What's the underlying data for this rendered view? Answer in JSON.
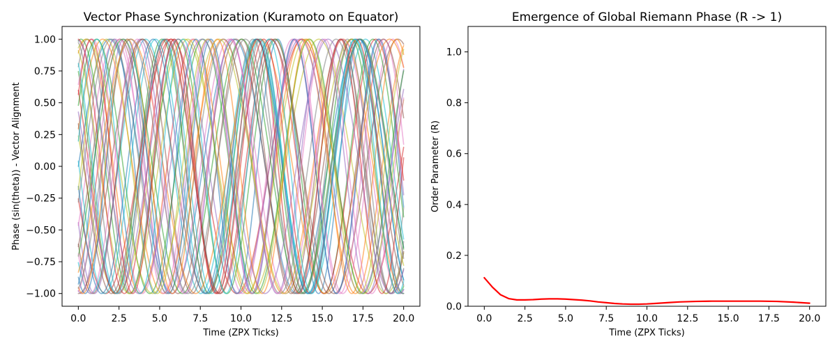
{
  "chart_data": [
    {
      "type": "line",
      "title": "Vector Phase Synchronization (Kuramoto on Equator)",
      "xlabel": "Time (ZPX Ticks)",
      "ylabel": "Phase (sin(theta)) - Vector Alignment",
      "xlim": [
        -1.0,
        21.0
      ],
      "ylim": [
        -1.1,
        1.1
      ],
      "xticks": [
        0.0,
        2.5,
        5.0,
        7.5,
        10.0,
        12.5,
        15.0,
        17.5,
        20.0
      ],
      "xtick_labels": [
        "0.0",
        "2.5",
        "5.0",
        "7.5",
        "10.0",
        "12.5",
        "15.0",
        "17.5",
        "20.0"
      ],
      "yticks": [
        -1.0,
        -0.75,
        -0.5,
        -0.25,
        0.0,
        0.25,
        0.5,
        0.75,
        1.0
      ],
      "ytick_labels": [
        "−1.00",
        "−0.75",
        "−0.50",
        "−0.25",
        "0.00",
        "0.25",
        "0.50",
        "0.75",
        "1.00"
      ],
      "grid": false,
      "legend": "none",
      "series_rule": "y = sin(omega * t + phase)",
      "x_range": [
        0.0,
        20.0
      ],
      "series": [
        {
          "omega": 0.82,
          "phase": 0.0,
          "color": "#1f77b4"
        },
        {
          "omega": 0.95,
          "phase": 1.1,
          "color": "#ff7f0e"
        },
        {
          "omega": 1.08,
          "phase": 2.3,
          "color": "#2ca02c"
        },
        {
          "omega": 0.78,
          "phase": 3.4,
          "color": "#d62728"
        },
        {
          "omega": 1.2,
          "phase": 4.5,
          "color": "#9467bd"
        },
        {
          "omega": 0.88,
          "phase": 5.6,
          "color": "#8c564b"
        },
        {
          "omega": 1.02,
          "phase": 0.7,
          "color": "#e377c2"
        },
        {
          "omega": 1.15,
          "phase": 1.8,
          "color": "#7f7f7f"
        },
        {
          "omega": 0.76,
          "phase": 2.9,
          "color": "#bcbd22"
        },
        {
          "omega": 0.93,
          "phase": 4.0,
          "color": "#17becf"
        },
        {
          "omega": 1.25,
          "phase": 5.1,
          "color": "#1f77b4"
        },
        {
          "omega": 0.85,
          "phase": 0.3,
          "color": "#ff7f0e"
        },
        {
          "omega": 1.05,
          "phase": 1.4,
          "color": "#2ca02c"
        },
        {
          "omega": 0.98,
          "phase": 2.5,
          "color": "#d62728"
        },
        {
          "omega": 1.12,
          "phase": 3.6,
          "color": "#9467bd"
        },
        {
          "omega": 0.8,
          "phase": 4.7,
          "color": "#8c564b"
        },
        {
          "omega": 0.9,
          "phase": 5.8,
          "color": "#e377c2"
        },
        {
          "omega": 1.18,
          "phase": 0.9,
          "color": "#7f7f7f"
        },
        {
          "omega": 0.87,
          "phase": 2.0,
          "color": "#bcbd22"
        },
        {
          "omega": 1.0,
          "phase": 3.1,
          "color": "#17becf"
        },
        {
          "omega": 1.22,
          "phase": 4.2,
          "color": "#1f77b4"
        },
        {
          "omega": 0.79,
          "phase": 5.3,
          "color": "#ff7f0e"
        },
        {
          "omega": 0.96,
          "phase": 0.5,
          "color": "#2ca02c"
        },
        {
          "omega": 1.1,
          "phase": 1.6,
          "color": "#d62728"
        },
        {
          "omega": 0.84,
          "phase": 2.7,
          "color": "#9467bd"
        },
        {
          "omega": 1.03,
          "phase": 3.8,
          "color": "#8c564b"
        },
        {
          "omega": 1.16,
          "phase": 4.9,
          "color": "#e377c2"
        },
        {
          "omega": 0.91,
          "phase": 6.0,
          "color": "#7f7f7f"
        },
        {
          "omega": 0.77,
          "phase": 1.2,
          "color": "#bcbd22"
        },
        {
          "omega": 1.07,
          "phase": 2.2,
          "color": "#17becf"
        },
        {
          "omega": 0.99,
          "phase": 3.3,
          "color": "#1f77b4"
        },
        {
          "omega": 1.14,
          "phase": 4.4,
          "color": "#ff7f0e"
        },
        {
          "omega": 0.86,
          "phase": 5.5,
          "color": "#2ca02c"
        },
        {
          "omega": 1.23,
          "phase": 0.6,
          "color": "#d62728"
        },
        {
          "omega": 0.81,
          "phase": 1.7,
          "color": "#9467bd"
        },
        {
          "omega": 0.94,
          "phase": 2.8,
          "color": "#8c564b"
        },
        {
          "omega": 1.09,
          "phase": 3.9,
          "color": "#e377c2"
        },
        {
          "omega": 0.89,
          "phase": 5.0,
          "color": "#7f7f7f"
        },
        {
          "omega": 1.01,
          "phase": 6.1,
          "color": "#bcbd22"
        },
        {
          "omega": 1.19,
          "phase": 0.2,
          "color": "#17becf"
        }
      ]
    },
    {
      "type": "line",
      "title": "Emergence of Global Riemann Phase (R -> 1)",
      "xlabel": "Time (ZPX Ticks)",
      "ylabel": "Order Parameter (R)",
      "xlim": [
        -1.0,
        21.0
      ],
      "ylim": [
        0.0,
        1.1
      ],
      "xticks": [
        0.0,
        2.5,
        5.0,
        7.5,
        10.0,
        12.5,
        15.0,
        17.5,
        20.0
      ],
      "xtick_labels": [
        "0.0",
        "2.5",
        "5.0",
        "7.5",
        "10.0",
        "12.5",
        "15.0",
        "17.5",
        "20.0"
      ],
      "yticks": [
        0.0,
        0.2,
        0.4,
        0.6,
        0.8,
        1.0
      ],
      "ytick_labels": [
        "0.0",
        "0.2",
        "0.4",
        "0.6",
        "0.8",
        "1.0"
      ],
      "grid": false,
      "legend": "none",
      "series": [
        {
          "color": "#ff0000",
          "x": [
            0.0,
            0.5,
            1.0,
            1.5,
            2.0,
            2.5,
            3.0,
            3.5,
            4.0,
            4.5,
            5.0,
            5.5,
            6.0,
            6.5,
            7.0,
            7.5,
            8.0,
            8.5,
            9.0,
            9.5,
            10.0,
            10.5,
            11.0,
            11.5,
            12.0,
            13.0,
            14.0,
            15.0,
            16.0,
            17.0,
            18.0,
            19.0,
            20.0
          ],
          "values": [
            0.112,
            0.075,
            0.045,
            0.03,
            0.025,
            0.025,
            0.026,
            0.028,
            0.029,
            0.029,
            0.028,
            0.026,
            0.024,
            0.021,
            0.017,
            0.014,
            0.011,
            0.009,
            0.008,
            0.008,
            0.009,
            0.011,
            0.013,
            0.015,
            0.017,
            0.019,
            0.02,
            0.02,
            0.02,
            0.02,
            0.019,
            0.016,
            0.012
          ]
        }
      ]
    }
  ]
}
